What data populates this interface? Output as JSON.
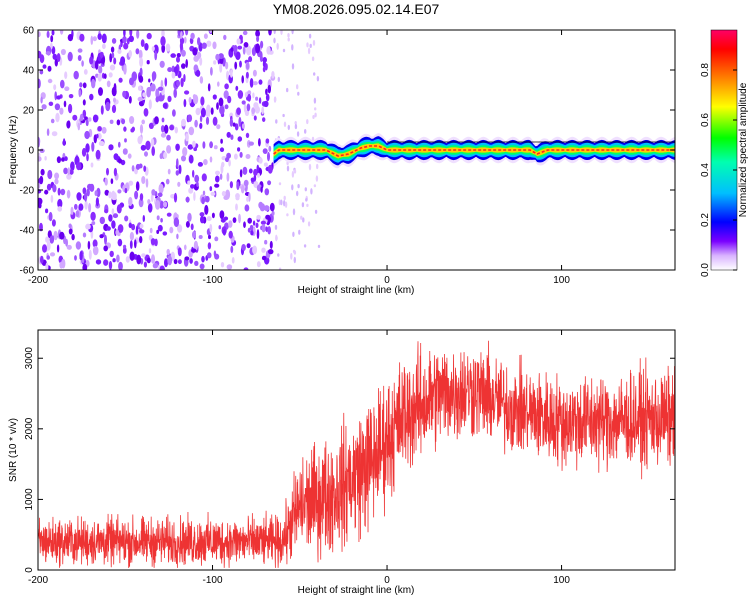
{
  "title": "YM08.2026.095.02.14.E07",
  "chart_data": [
    {
      "type": "heatmap",
      "xlabel": "Height of straight line (km)",
      "ylabel": "Frequency (Hz)",
      "xlim": [
        -200,
        165
      ],
      "ylim": [
        -60,
        60
      ],
      "x_ticks": [
        -200,
        -100,
        0,
        100
      ],
      "y_ticks": [
        60,
        40,
        20,
        0,
        -20,
        -40,
        -60
      ],
      "noise_region_x": [
        -200,
        -65
      ],
      "sparse_region_x": [
        -65,
        -38
      ],
      "ridge": {
        "description_free": true,
        "x_start": -65,
        "x_end": 165,
        "freq_points": [
          [
            -65,
            -2
          ],
          [
            -62,
            0
          ],
          [
            -50,
            0
          ],
          [
            -35,
            0
          ],
          [
            -28,
            -3
          ],
          [
            -22,
            -2
          ],
          [
            -15,
            1
          ],
          [
            -10,
            2
          ],
          [
            -5,
            2
          ],
          [
            0,
            0
          ],
          [
            40,
            0
          ],
          [
            82,
            0
          ],
          [
            86,
            -2
          ],
          [
            92,
            0
          ],
          [
            100,
            0
          ],
          [
            165,
            0
          ]
        ]
      },
      "colorbar": {
        "label": "Normalized spectral amplitude",
        "ticks": [
          0.0,
          0.2,
          0.4,
          0.6,
          0.8
        ],
        "range": [
          0,
          0.96
        ],
        "colors": [
          "#ffffff",
          "#d9b3ff",
          "#7a00ff",
          "#0000ff",
          "#00bfff",
          "#00ffb0",
          "#00ff00",
          "#ffff00",
          "#ff8000",
          "#ff0000",
          "#ff0066"
        ]
      }
    },
    {
      "type": "line",
      "xlabel": "Height of straight line (km)",
      "ylabel": "SNR (10 * v/v)",
      "xlim": [
        -200,
        165
      ],
      "ylim": [
        0,
        3400
      ],
      "x_ticks": [
        -200,
        -100,
        0,
        100
      ],
      "y_ticks": [
        0,
        1000,
        2000,
        3000
      ],
      "color": "#ee3333",
      "trend": [
        [
          -200,
          400
        ],
        [
          -60,
          400
        ],
        [
          -50,
          900
        ],
        [
          -30,
          1100
        ],
        [
          -10,
          1500
        ],
        [
          10,
          2200
        ],
        [
          30,
          2500
        ],
        [
          50,
          2550
        ],
        [
          70,
          2300
        ],
        [
          100,
          2100
        ],
        [
          165,
          2150
        ]
      ],
      "noise_amplitude": [
        [
          -200,
          160
        ],
        [
          -60,
          170
        ],
        [
          -50,
          350
        ],
        [
          -10,
          450
        ],
        [
          30,
          350
        ],
        [
          70,
          300
        ],
        [
          165,
          330
        ]
      ]
    }
  ]
}
